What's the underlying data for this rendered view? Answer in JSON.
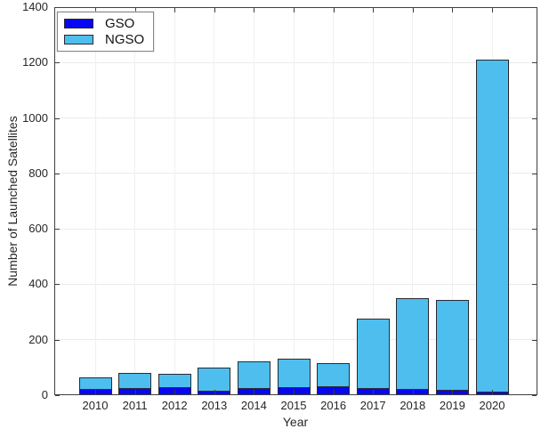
{
  "chart_data": {
    "type": "bar",
    "stacked": true,
    "title": "",
    "xlabel": "Year",
    "ylabel": "Number of Launched Satellites",
    "categories": [
      "2010",
      "2011",
      "2012",
      "2013",
      "2014",
      "2015",
      "2016",
      "2017",
      "2018",
      "2019",
      "2020"
    ],
    "series": [
      {
        "name": "GSO",
        "color": "#0707f2",
        "values": [
          22,
          26,
          29,
          17,
          25,
          29,
          32,
          27,
          23,
          20,
          14
        ]
      },
      {
        "name": "NGSO",
        "color": "#4dbeee",
        "values": [
          42,
          54,
          48,
          82,
          97,
          104,
          85,
          250,
          326,
          322,
          1198
        ]
      }
    ],
    "totals": [
      64,
      80,
      77,
      99,
      122,
      133,
      117,
      277,
      349,
      342,
      1212
    ],
    "ylim": [
      0,
      1400
    ],
    "yticks": [
      0,
      200,
      400,
      600,
      800,
      1000,
      1200,
      1400
    ],
    "grid": true,
    "legend_position": "top-left",
    "style": {
      "bar_edge_color": "#2a2a32",
      "axis_color": "#3f3f3f",
      "grid_color": "#ebebeb",
      "background": "#ffffff",
      "text_color": "#262626"
    }
  }
}
